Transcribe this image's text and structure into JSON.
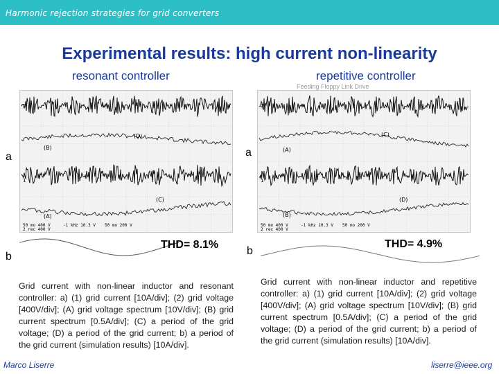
{
  "header": {
    "title": "Harmonic rejection strategies for grid converters"
  },
  "slide": {
    "title": "Experimental results: high current non-linearity"
  },
  "left_panel": {
    "heading": "resonant controller",
    "label_a": "a",
    "label_b": "b",
    "thd": "THD= 8.1%",
    "caption": "Grid current with non-linear inductor and resonant controller: a) (1) grid current [10A/div]; (2) grid voltage [400V/div]; (A) grid voltage spectrum [10V/div]; (B) grid current spectrum [0.5A/div]; (C) a period of the grid voltage; (D) a period of the grid current; b) a period of the grid current (simulation results) [10A/div].",
    "trace_labels": {
      "two": "2",
      "one": "1",
      "B": "(B)",
      "A": "(A)",
      "C": "(C)",
      "D": "(D)"
    },
    "readout_1": "50 mo 400 V",
    "readout_2": "2  rec 400 V",
    "readout_3": "-1 kHz 10.3 V",
    "readout_4": "50 mo 200 V"
  },
  "right_panel": {
    "heading": "repetitive controller",
    "scope_note": "Feeding Floppy Link Drive",
    "label_a": "a",
    "label_b": "b",
    "thd": "THD= 4.9%",
    "caption": "Grid current with non-linear inductor and repetitive controller: a) (1) grid current [10A/div]; (2) grid voltage [400V/div]; (A) grid voltage spectrum [10V/div]; (B) grid current spectrum [0.5A/div]; (C) a period of the grid voltage; (D) a period of the grid current; b) a period of the grid current (simulation results) [10A/div].",
    "trace_labels": {
      "two": "2",
      "one": "1",
      "B": "(B)",
      "A": "(A)",
      "C": "(C)",
      "D": "(D)"
    },
    "readout_1": "50 mo 400 V",
    "readout_2": "2  rec 400 V",
    "readout_3": "-1 kHz 10.3 V",
    "readout_4": "50 mo 200 V"
  },
  "footer": {
    "author": "Marco Liserre",
    "email": "liserre@ieee.org"
  }
}
